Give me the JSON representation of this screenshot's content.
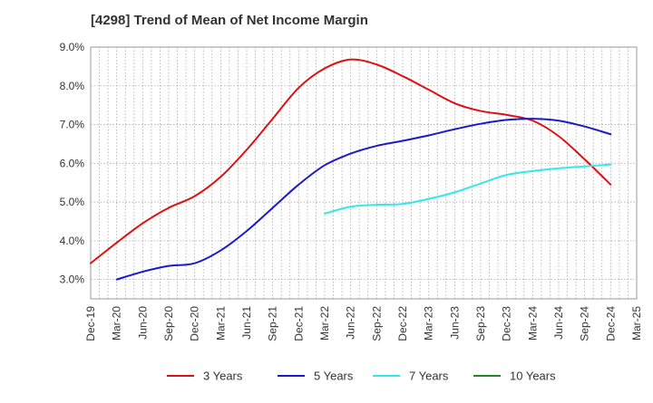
{
  "chart_data": {
    "type": "line",
    "title": "[4298]  Trend of Mean of Net Income Margin",
    "x_ticks": [
      "Dec-19",
      "Mar-20",
      "Jun-20",
      "Sep-20",
      "Dec-20",
      "Mar-21",
      "Jun-21",
      "Sep-21",
      "Dec-21",
      "Mar-22",
      "Jun-22",
      "Sep-22",
      "Dec-22",
      "Mar-23",
      "Jun-23",
      "Sep-23",
      "Dec-23",
      "Mar-24",
      "Jun-24",
      "Sep-24",
      "Dec-24",
      "Mar-25"
    ],
    "y_ticks": [
      "9.0%",
      "8.0%",
      "7.0%",
      "6.0%",
      "5.0%",
      "4.0%",
      "3.0%"
    ],
    "ylim": [
      2.5,
      9.0
    ],
    "y_unit": "%",
    "grid": true,
    "legend_position": "bottom",
    "series": [
      {
        "name": "3 Years",
        "color": "#dd1111",
        "x": [
          "Dec-19",
          "Mar-20",
          "Jun-20",
          "Sep-20",
          "Dec-20",
          "Mar-21",
          "Jun-21",
          "Sep-21",
          "Dec-21",
          "Mar-22",
          "Jun-22",
          "Sep-22",
          "Dec-22",
          "Mar-23",
          "Jun-23",
          "Sep-23",
          "Dec-23",
          "Mar-24",
          "Jun-24",
          "Sep-24",
          "Dec-24"
        ],
        "values": [
          3.42,
          3.95,
          4.45,
          4.85,
          5.15,
          5.65,
          6.35,
          7.15,
          7.95,
          8.45,
          8.68,
          8.55,
          8.25,
          7.9,
          7.55,
          7.35,
          7.25,
          7.1,
          6.7,
          6.1,
          5.45
        ]
      },
      {
        "name": "5 Years",
        "color": "#1a1acc",
        "x": [
          "Mar-20",
          "Jun-20",
          "Sep-20",
          "Dec-20",
          "Mar-21",
          "Jun-21",
          "Sep-21",
          "Dec-21",
          "Mar-22",
          "Jun-22",
          "Sep-22",
          "Dec-22",
          "Mar-23",
          "Jun-23",
          "Sep-23",
          "Dec-23",
          "Mar-24",
          "Jun-24",
          "Sep-24",
          "Dec-24"
        ],
        "values": [
          3.0,
          3.2,
          3.35,
          3.42,
          3.75,
          4.25,
          4.85,
          5.45,
          5.95,
          6.25,
          6.45,
          6.58,
          6.72,
          6.88,
          7.02,
          7.12,
          7.15,
          7.1,
          6.95,
          6.75
        ]
      },
      {
        "name": "7 Years",
        "color": "#33e8e8",
        "x": [
          "Mar-22",
          "Jun-22",
          "Sep-22",
          "Dec-22",
          "Mar-23",
          "Jun-23",
          "Sep-23",
          "Dec-23",
          "Mar-24",
          "Jun-24",
          "Sep-24",
          "Dec-24"
        ],
        "values": [
          4.7,
          4.88,
          4.93,
          4.95,
          5.08,
          5.25,
          5.48,
          5.7,
          5.8,
          5.87,
          5.92,
          5.97
        ]
      },
      {
        "name": "10 Years",
        "color": "#228822",
        "x": [],
        "values": []
      }
    ]
  }
}
